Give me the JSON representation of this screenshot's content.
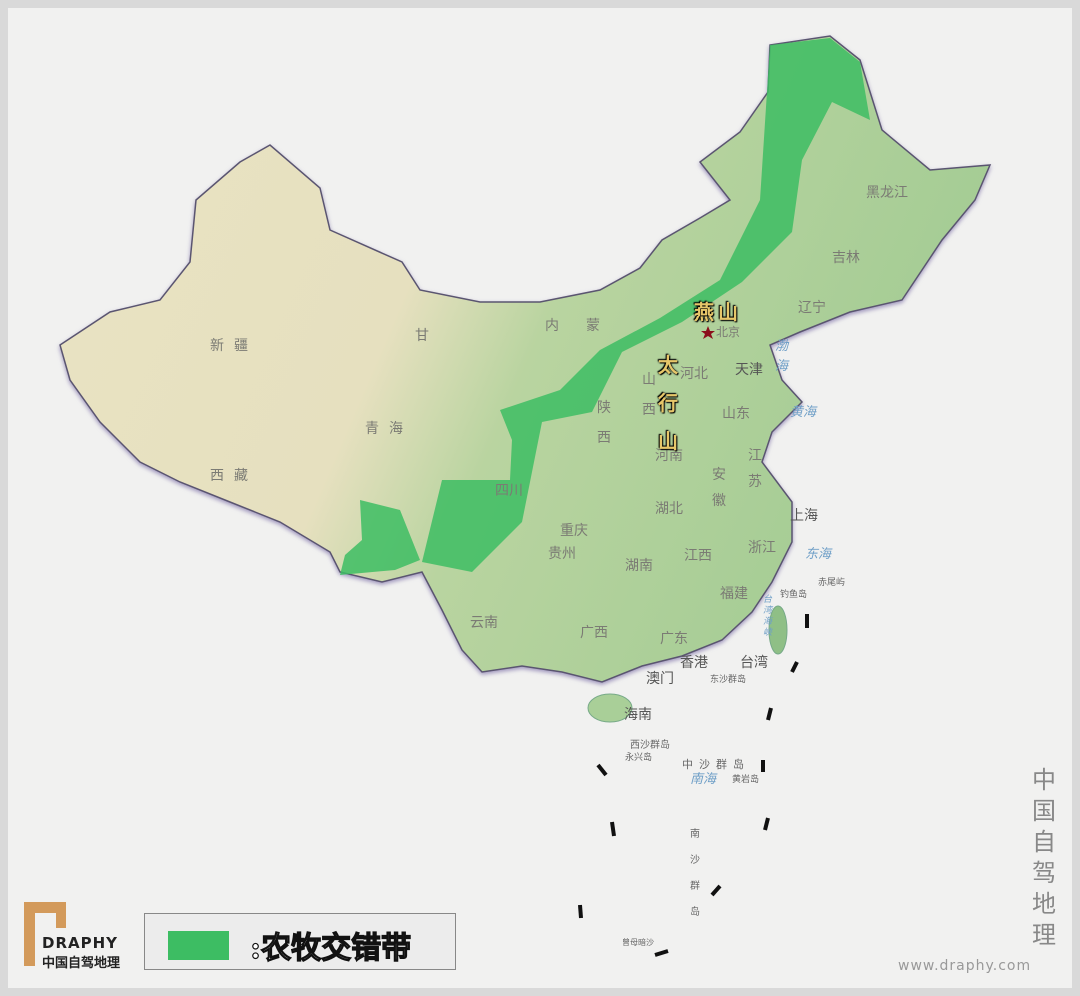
{
  "legend": {
    "swatch_color": "#3dbd63",
    "label": ":农牧交错带"
  },
  "brand": {
    "logo_en": "DRAPHY",
    "logo_cn": "中国自驾地理",
    "vertical_title": "中国自驾地理",
    "website": "www.draphy.com",
    "accent": "#d39a5b"
  },
  "mountains": [
    "燕山",
    "太行山"
  ],
  "capital_marker": "star",
  "provinces": [
    "新疆",
    "西藏",
    "青海",
    "甘",
    "内",
    "蒙",
    "黑龙江",
    "吉林",
    "辽宁",
    "北京",
    "天津",
    "河北",
    "山西",
    "陕西",
    "山东",
    "河南",
    "江苏",
    "安徽",
    "湖北",
    "重庆",
    "四川",
    "贵州",
    "云南",
    "湖南",
    "江西",
    "浙江",
    "福建",
    "广西",
    "广东",
    "上海",
    "香港",
    "澳门",
    "台湾",
    "海南"
  ],
  "seas": [
    "渤海",
    "黄海",
    "东海",
    "台湾海峡",
    "南海"
  ],
  "islands": [
    "钓鱼岛",
    "赤尾屿",
    "东沙群岛",
    "西沙群岛",
    "永兴岛",
    "中沙群岛",
    "黄岩岛",
    "南沙群岛",
    "曾母暗沙"
  ],
  "colors": {
    "belt": "#3dbd63",
    "desert": "#ece6c8",
    "lowland": "#a9cf98",
    "sea_bg": "#f1f1f0"
  }
}
